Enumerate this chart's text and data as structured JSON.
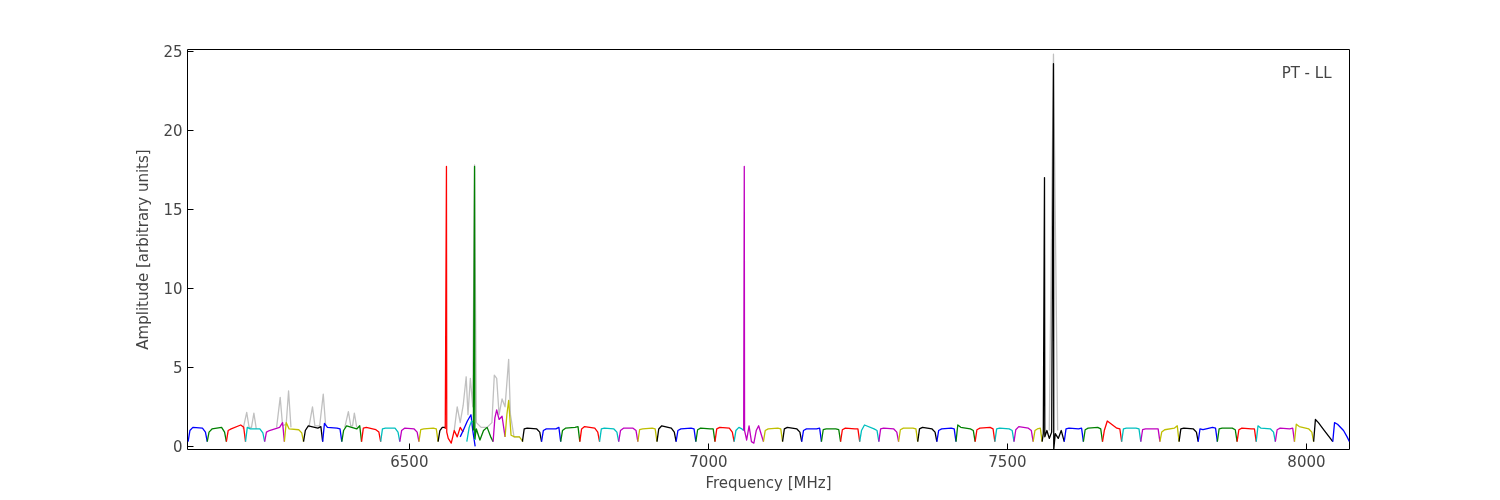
{
  "chart_data": {
    "type": "line",
    "xlabel": "Frequency [MHz]",
    "ylabel": "Amplitude [arbitrary units]",
    "annotations": [
      "PT - LL"
    ],
    "xlim": [
      6129,
      8072
    ],
    "ylim": [
      -0.2,
      25.1
    ],
    "xticks": [
      6500,
      7000,
      7500,
      8000
    ],
    "yticks": [
      0,
      5,
      10,
      15,
      20,
      25
    ],
    "series": [
      {
        "color": "#c0c0c0",
        "x": [
          6222,
          6228,
          6232,
          6236,
          6240,
          6244,
          6260,
          6278,
          6284,
          6288,
          6294,
          6298,
          6302,
          6320,
          6332,
          6338,
          6342,
          6350,
          6356,
          6360,
          6380,
          6392,
          6398,
          6402,
          6405,
          6408,
          6412,
          6500,
          6575,
          6580,
          6585,
          6590,
          6595,
          6598,
          6602,
          6606,
          6609,
          6612,
          6620,
          6630,
          6638,
          6642,
          6646,
          6650,
          6655,
          6660,
          6664,
          6666,
          6669,
          6675,
          6685,
          7000,
          7570,
          7577,
          7584
        ],
        "values": [
          1.1,
          2.15,
          1.2,
          1.2,
          2.1,
          1.1,
          null,
          1.2,
          3.1,
          1.3,
          1.4,
          3.5,
          1.2,
          null,
          1.2,
          2.5,
          1.3,
          1.3,
          3.3,
          1.3,
          null,
          1.2,
          2.2,
          1.3,
          1.3,
          2.1,
          1.2,
          null,
          1.0,
          2.5,
          1.5,
          2.6,
          4.4,
          2.0,
          4.3,
          2.5,
          17.8,
          1.5,
          1.2,
          1.2,
          1.5,
          4.5,
          4.3,
          2.0,
          3.0,
          2.5,
          4.5,
          5.5,
          2.0,
          0.6,
          0.6,
          null,
          1.0,
          24.8,
          1.0
        ]
      },
      {
        "color": "#0000ff",
        "x": [
          6130,
          6133,
          6138,
          6154,
          6159,
          6162
        ],
        "values": [
          0.3,
          1.0,
          1.2,
          1.15,
          0.9,
          0.3
        ]
      },
      {
        "color": "#008000",
        "x": [
          6162,
          6165,
          6170,
          6186,
          6191,
          6194
        ],
        "values": [
          0.3,
          0.9,
          1.1,
          1.2,
          0.9,
          0.3
        ]
      },
      {
        "color": "#ff0000",
        "x": [
          6194,
          6197,
          6202,
          6218,
          6223,
          6226
        ],
        "values": [
          0.3,
          1.0,
          1.1,
          1.35,
          1.2,
          0.3
        ]
      },
      {
        "color": "#00bfbf",
        "x": [
          6226,
          6229,
          6234,
          6250,
          6255,
          6258
        ],
        "values": [
          0.3,
          1.2,
          1.1,
          1.1,
          0.85,
          0.3
        ]
      },
      {
        "color": "#bf00bf",
        "x": [
          6258,
          6261,
          6266,
          6283,
          6288,
          6291
        ],
        "values": [
          0.3,
          0.9,
          1.0,
          1.2,
          1.5,
          0.3
        ]
      },
      {
        "color": "#bfbf00",
        "x": [
          6291,
          6294,
          6299,
          6315,
          6320,
          6323
        ],
        "values": [
          0.3,
          1.5,
          1.1,
          1.05,
          0.85,
          0.3
        ]
      },
      {
        "color": "#000000",
        "x": [
          6323,
          6326,
          6331,
          6347,
          6352,
          6355
        ],
        "values": [
          0.3,
          1.0,
          1.3,
          1.15,
          1.25,
          0.3
        ]
      },
      {
        "color": "#0000ff",
        "x": [
          6355,
          6358,
          6363,
          6379,
          6384,
          6387
        ],
        "values": [
          0.3,
          1.45,
          1.2,
          1.15,
          1.1,
          0.3
        ]
      },
      {
        "color": "#008000",
        "x": [
          6387,
          6390,
          6395,
          6412,
          6417,
          6420
        ],
        "values": [
          0.3,
          1.0,
          1.3,
          1.1,
          1.3,
          0.3
        ]
      },
      {
        "color": "#ff0000",
        "x": [
          6420,
          6423,
          6428,
          6444,
          6449,
          6452
        ],
        "values": [
          0.3,
          1.15,
          1.2,
          1.05,
          0.9,
          0.3
        ]
      },
      {
        "color": "#00bfbf",
        "x": [
          6452,
          6455,
          6460,
          6476,
          6481,
          6484
        ],
        "values": [
          0.3,
          1.1,
          1.15,
          1.15,
          0.9,
          0.3
        ]
      },
      {
        "color": "#bf00bf",
        "x": [
          6484,
          6487,
          6492,
          6508,
          6513,
          6516
        ],
        "values": [
          0.3,
          1.0,
          1.15,
          1.1,
          0.9,
          0.3
        ]
      },
      {
        "color": "#bfbf00",
        "x": [
          6516,
          6519,
          6524,
          6540,
          6545,
          6548
        ],
        "values": [
          0.3,
          1.05,
          1.1,
          1.15,
          1.1,
          0.3
        ]
      },
      {
        "color": "#000000",
        "x": [
          6548,
          6551,
          6555,
          6560
        ],
        "values": [
          0.3,
          1.0,
          1.2,
          1.2
        ]
      },
      {
        "color": "#ff0000",
        "x": [
          6560,
          6562,
          6562.5,
          6565,
          6570,
          6575,
          6580,
          6585,
          6590
        ],
        "values": [
          1.1,
          17.7,
          0.9,
          0.5,
          0.2,
          1.0,
          0.6,
          1.2,
          0.9
        ]
      },
      {
        "color": "#0000ff",
        "x": [
          6585,
          6590,
          6597,
          6603,
          6606,
          6610
        ],
        "values": [
          0.6,
          1.0,
          1.6,
          2.0,
          1.0,
          0.0
        ]
      },
      {
        "color": "#00bfbf",
        "x": [
          6596,
          6600,
          6604,
          6608,
          6610
        ],
        "values": [
          0.3,
          1.2,
          1.6,
          1.5,
          0.4
        ]
      },
      {
        "color": "#008000",
        "x": [
          6607,
          6609,
          6609.5,
          6612,
          6618,
          6624,
          6630,
          6636,
          6640
        ],
        "values": [
          1.0,
          17.7,
          0.5,
          1.1,
          0.4,
          1.0,
          1.2,
          0.6,
          0.3
        ]
      },
      {
        "color": "#bf00bf",
        "x": [
          6640,
          6643,
          6646,
          6650,
          6655,
          6660
        ],
        "values": [
          0.3,
          1.8,
          2.3,
          1.7,
          1.9,
          0.6
        ]
      },
      {
        "color": "#bfbf00",
        "x": [
          6660,
          6663,
          6666,
          6670,
          6676,
          6684,
          6690
        ],
        "values": [
          0.6,
          2.0,
          2.9,
          0.7,
          0.6,
          0.6,
          0.3
        ]
      },
      {
        "color": "#000000",
        "x": [
          6689,
          6692,
          6697,
          6713,
          6718,
          6721
        ],
        "values": [
          0.3,
          1.1,
          1.15,
          1.1,
          0.9,
          0.3
        ]
      },
      {
        "color": "#0000ff",
        "x": [
          6721,
          6724,
          6729,
          6745,
          6750,
          6753
        ],
        "values": [
          0.3,
          1.0,
          1.1,
          1.1,
          1.2,
          0.3
        ]
      },
      {
        "color": "#008000",
        "x": [
          6753,
          6756,
          6761,
          6777,
          6782,
          6785
        ],
        "values": [
          0.3,
          1.0,
          1.15,
          1.2,
          1.25,
          0.3
        ]
      },
      {
        "color": "#ff0000",
        "x": [
          6785,
          6788,
          6793,
          6810,
          6815,
          6818
        ],
        "values": [
          0.3,
          1.1,
          1.25,
          1.15,
          0.9,
          0.3
        ]
      },
      {
        "color": "#00bfbf",
        "x": [
          6818,
          6821,
          6826,
          6842,
          6847,
          6850
        ],
        "values": [
          0.3,
          1.1,
          1.15,
          1.1,
          0.9,
          0.3
        ]
      },
      {
        "color": "#bf00bf",
        "x": [
          6850,
          6853,
          6858,
          6874,
          6879,
          6882
        ],
        "values": [
          0.3,
          1.0,
          1.15,
          1.15,
          1.0,
          0.3
        ]
      },
      {
        "color": "#bfbf00",
        "x": [
          6882,
          6885,
          6890,
          6906,
          6911,
          6914
        ],
        "values": [
          0.3,
          1.05,
          1.1,
          1.15,
          1.1,
          0.3
        ]
      },
      {
        "color": "#000000",
        "x": [
          6914,
          6917,
          6922,
          6938,
          6943,
          6946
        ],
        "values": [
          0.3,
          1.1,
          1.3,
          1.15,
          0.9,
          0.3
        ]
      },
      {
        "color": "#0000ff",
        "x": [
          6946,
          6949,
          6954,
          6971,
          6976,
          6979
        ],
        "values": [
          0.3,
          1.0,
          1.1,
          1.15,
          1.1,
          0.3
        ]
      },
      {
        "color": "#008000",
        "x": [
          6979,
          6982,
          6987,
          7003,
          7008,
          7011
        ],
        "values": [
          0.3,
          1.05,
          1.15,
          1.1,
          1.1,
          0.3
        ]
      },
      {
        "color": "#ff0000",
        "x": [
          7011,
          7014,
          7019,
          7035,
          7040,
          7043
        ],
        "values": [
          0.3,
          1.1,
          1.2,
          1.15,
          0.9,
          0.3
        ]
      },
      {
        "color": "#00bfbf",
        "x": [
          7043,
          7046,
          7051,
          7056,
          7059
        ],
        "values": [
          0.3,
          1.0,
          1.2,
          1.1,
          1.0
        ]
      },
      {
        "color": "#bf00bf",
        "x": [
          7059,
          7060,
          7060.5,
          7064,
          7068,
          7072,
          7076,
          7080,
          7084,
          7088,
          7092
        ],
        "values": [
          1.0,
          17.7,
          1.0,
          0.4,
          1.3,
          0.3,
          0.2,
          1.0,
          1.3,
          0.8,
          0.3
        ]
      },
      {
        "color": "#bfbf00",
        "x": [
          7092,
          7095,
          7100,
          7116,
          7121,
          7124
        ],
        "values": [
          0.3,
          1.0,
          1.1,
          1.15,
          1.1,
          0.3
        ]
      },
      {
        "color": "#000000",
        "x": [
          7124,
          7127,
          7132,
          7148,
          7153,
          7156
        ],
        "values": [
          0.3,
          1.1,
          1.2,
          1.1,
          0.9,
          0.3
        ]
      },
      {
        "color": "#0000ff",
        "x": [
          7156,
          7159,
          7164,
          7181,
          7186,
          7189
        ],
        "values": [
          0.3,
          1.0,
          1.1,
          1.1,
          1.15,
          0.3
        ]
      },
      {
        "color": "#008000",
        "x": [
          7189,
          7192,
          7197,
          7213,
          7218,
          7221
        ],
        "values": [
          0.3,
          1.05,
          1.1,
          1.1,
          1.05,
          0.3
        ]
      },
      {
        "color": "#ff0000",
        "x": [
          7221,
          7224,
          7229,
          7245,
          7250,
          7253
        ],
        "values": [
          0.3,
          1.05,
          1.15,
          1.1,
          1.1,
          0.3
        ]
      },
      {
        "color": "#00bfbf",
        "x": [
          7253,
          7256,
          7261,
          7277,
          7282,
          7285
        ],
        "values": [
          0.3,
          1.0,
          1.35,
          1.1,
          1.0,
          0.3
        ]
      },
      {
        "color": "#bf00bf",
        "x": [
          7285,
          7288,
          7293,
          7310,
          7315,
          7318
        ],
        "values": [
          0.3,
          1.1,
          1.15,
          1.1,
          0.9,
          0.3
        ]
      },
      {
        "color": "#bfbf00",
        "x": [
          7318,
          7321,
          7326,
          7342,
          7347,
          7350
        ],
        "values": [
          0.3,
          1.05,
          1.15,
          1.15,
          1.1,
          0.3
        ]
      },
      {
        "color": "#000000",
        "x": [
          7350,
          7353,
          7358,
          7374,
          7379,
          7382
        ],
        "values": [
          0.3,
          1.1,
          1.2,
          1.1,
          0.9,
          0.3
        ]
      },
      {
        "color": "#0000ff",
        "x": [
          7382,
          7385,
          7390,
          7406,
          7411,
          7414
        ],
        "values": [
          0.3,
          1.0,
          1.1,
          1.15,
          1.1,
          0.3
        ]
      },
      {
        "color": "#008000",
        "x": [
          7414,
          7417,
          7422,
          7438,
          7443,
          7446
        ],
        "values": [
          0.3,
          1.35,
          1.2,
          1.1,
          1.0,
          0.3
        ]
      },
      {
        "color": "#ff0000",
        "x": [
          7446,
          7449,
          7454,
          7471,
          7476,
          7479
        ],
        "values": [
          0.3,
          1.05,
          1.15,
          1.2,
          1.1,
          0.3
        ]
      },
      {
        "color": "#00bfbf",
        "x": [
          7479,
          7482,
          7487,
          7503,
          7508,
          7511
        ],
        "values": [
          0.3,
          1.1,
          1.15,
          1.1,
          1.0,
          0.3
        ]
      },
      {
        "color": "#bf00bf",
        "x": [
          7511,
          7514,
          7519,
          7535,
          7540,
          7543
        ],
        "values": [
          0.3,
          1.05,
          1.25,
          1.15,
          1.0,
          0.3
        ]
      },
      {
        "color": "#bfbf00",
        "x": [
          7543,
          7546,
          7550,
          7555,
          7558
        ],
        "values": [
          0.3,
          1.0,
          1.1,
          1.15,
          0.3
        ]
      },
      {
        "color": "#000000",
        "x": [
          7558,
          7560,
          7562,
          7562.5,
          7566,
          7570,
          7574,
          7577,
          7577.5,
          7580,
          7585,
          7590,
          7595
        ],
        "values": [
          0.3,
          0.8,
          17.0,
          0.6,
          1.0,
          0.5,
          0.9,
          24.2,
          -0.2,
          0.8,
          0.5,
          1.0,
          0.3
        ]
      },
      {
        "color": "#0000ff",
        "x": [
          7595,
          7598,
          7603,
          7619,
          7624,
          7627
        ],
        "values": [
          0.3,
          1.1,
          1.15,
          1.1,
          1.15,
          0.3
        ]
      },
      {
        "color": "#008000",
        "x": [
          7627,
          7630,
          7635,
          7651,
          7656,
          7659
        ],
        "values": [
          0.3,
          1.05,
          1.15,
          1.2,
          1.1,
          0.3
        ]
      },
      {
        "color": "#ff0000",
        "x": [
          7659,
          7662,
          7667,
          7683,
          7688,
          7691
        ],
        "values": [
          0.3,
          1.0,
          1.6,
          1.15,
          1.1,
          0.3
        ]
      },
      {
        "color": "#00bfbf",
        "x": [
          7691,
          7694,
          7699,
          7715,
          7720,
          7723
        ],
        "values": [
          0.3,
          1.1,
          1.15,
          1.15,
          1.1,
          0.3
        ]
      },
      {
        "color": "#bf00bf",
        "x": [
          7723,
          7726,
          7731,
          7747,
          7752,
          7755
        ],
        "values": [
          0.3,
          1.05,
          1.1,
          1.1,
          1.1,
          0.3
        ]
      },
      {
        "color": "#bfbf00",
        "x": [
          7755,
          7758,
          7763,
          7779,
          7784,
          7787
        ],
        "values": [
          0.3,
          0.9,
          1.05,
          1.15,
          1.3,
          0.3
        ]
      },
      {
        "color": "#000000",
        "x": [
          7787,
          7790,
          7795,
          7811,
          7816,
          7819
        ],
        "values": [
          0.3,
          1.1,
          1.15,
          1.1,
          0.9,
          0.3
        ]
      },
      {
        "color": "#0000ff",
        "x": [
          7819,
          7822,
          7827,
          7843,
          7848,
          7851
        ],
        "values": [
          0.3,
          1.1,
          1.05,
          1.2,
          1.15,
          0.3
        ]
      },
      {
        "color": "#008000",
        "x": [
          7851,
          7854,
          7859,
          7876,
          7881,
          7884
        ],
        "values": [
          0.3,
          1.1,
          1.15,
          1.15,
          1.05,
          0.3
        ]
      },
      {
        "color": "#ff0000",
        "x": [
          7884,
          7887,
          7892,
          7908,
          7913,
          7916
        ],
        "values": [
          0.3,
          1.05,
          1.15,
          1.1,
          1.1,
          0.3
        ]
      },
      {
        "color": "#00bfbf",
        "x": [
          7916,
          7919,
          7924,
          7940,
          7945,
          7948
        ],
        "values": [
          0.3,
          1.3,
          1.15,
          1.1,
          0.9,
          0.3
        ]
      },
      {
        "color": "#bf00bf",
        "x": [
          7948,
          7951,
          7956,
          7972,
          7977,
          7980
        ],
        "values": [
          0.3,
          1.05,
          1.15,
          1.1,
          1.15,
          0.3
        ]
      },
      {
        "color": "#bfbf00",
        "x": [
          7980,
          7983,
          7988,
          8004,
          8009,
          8012
        ],
        "values": [
          0.3,
          1.4,
          1.25,
          1.1,
          0.9,
          0.3
        ]
      },
      {
        "color": "#000000",
        "x": [
          8012,
          8015,
          8020,
          8030,
          8040,
          8044
        ],
        "values": [
          0.3,
          1.7,
          1.5,
          1.0,
          0.5,
          0.3
        ]
      },
      {
        "color": "#0000ff",
        "x": [
          8044,
          8047,
          8052,
          8062,
          8068,
          8072
        ],
        "values": [
          0.3,
          1.5,
          1.4,
          1.0,
          0.6,
          0.3
        ]
      }
    ]
  }
}
